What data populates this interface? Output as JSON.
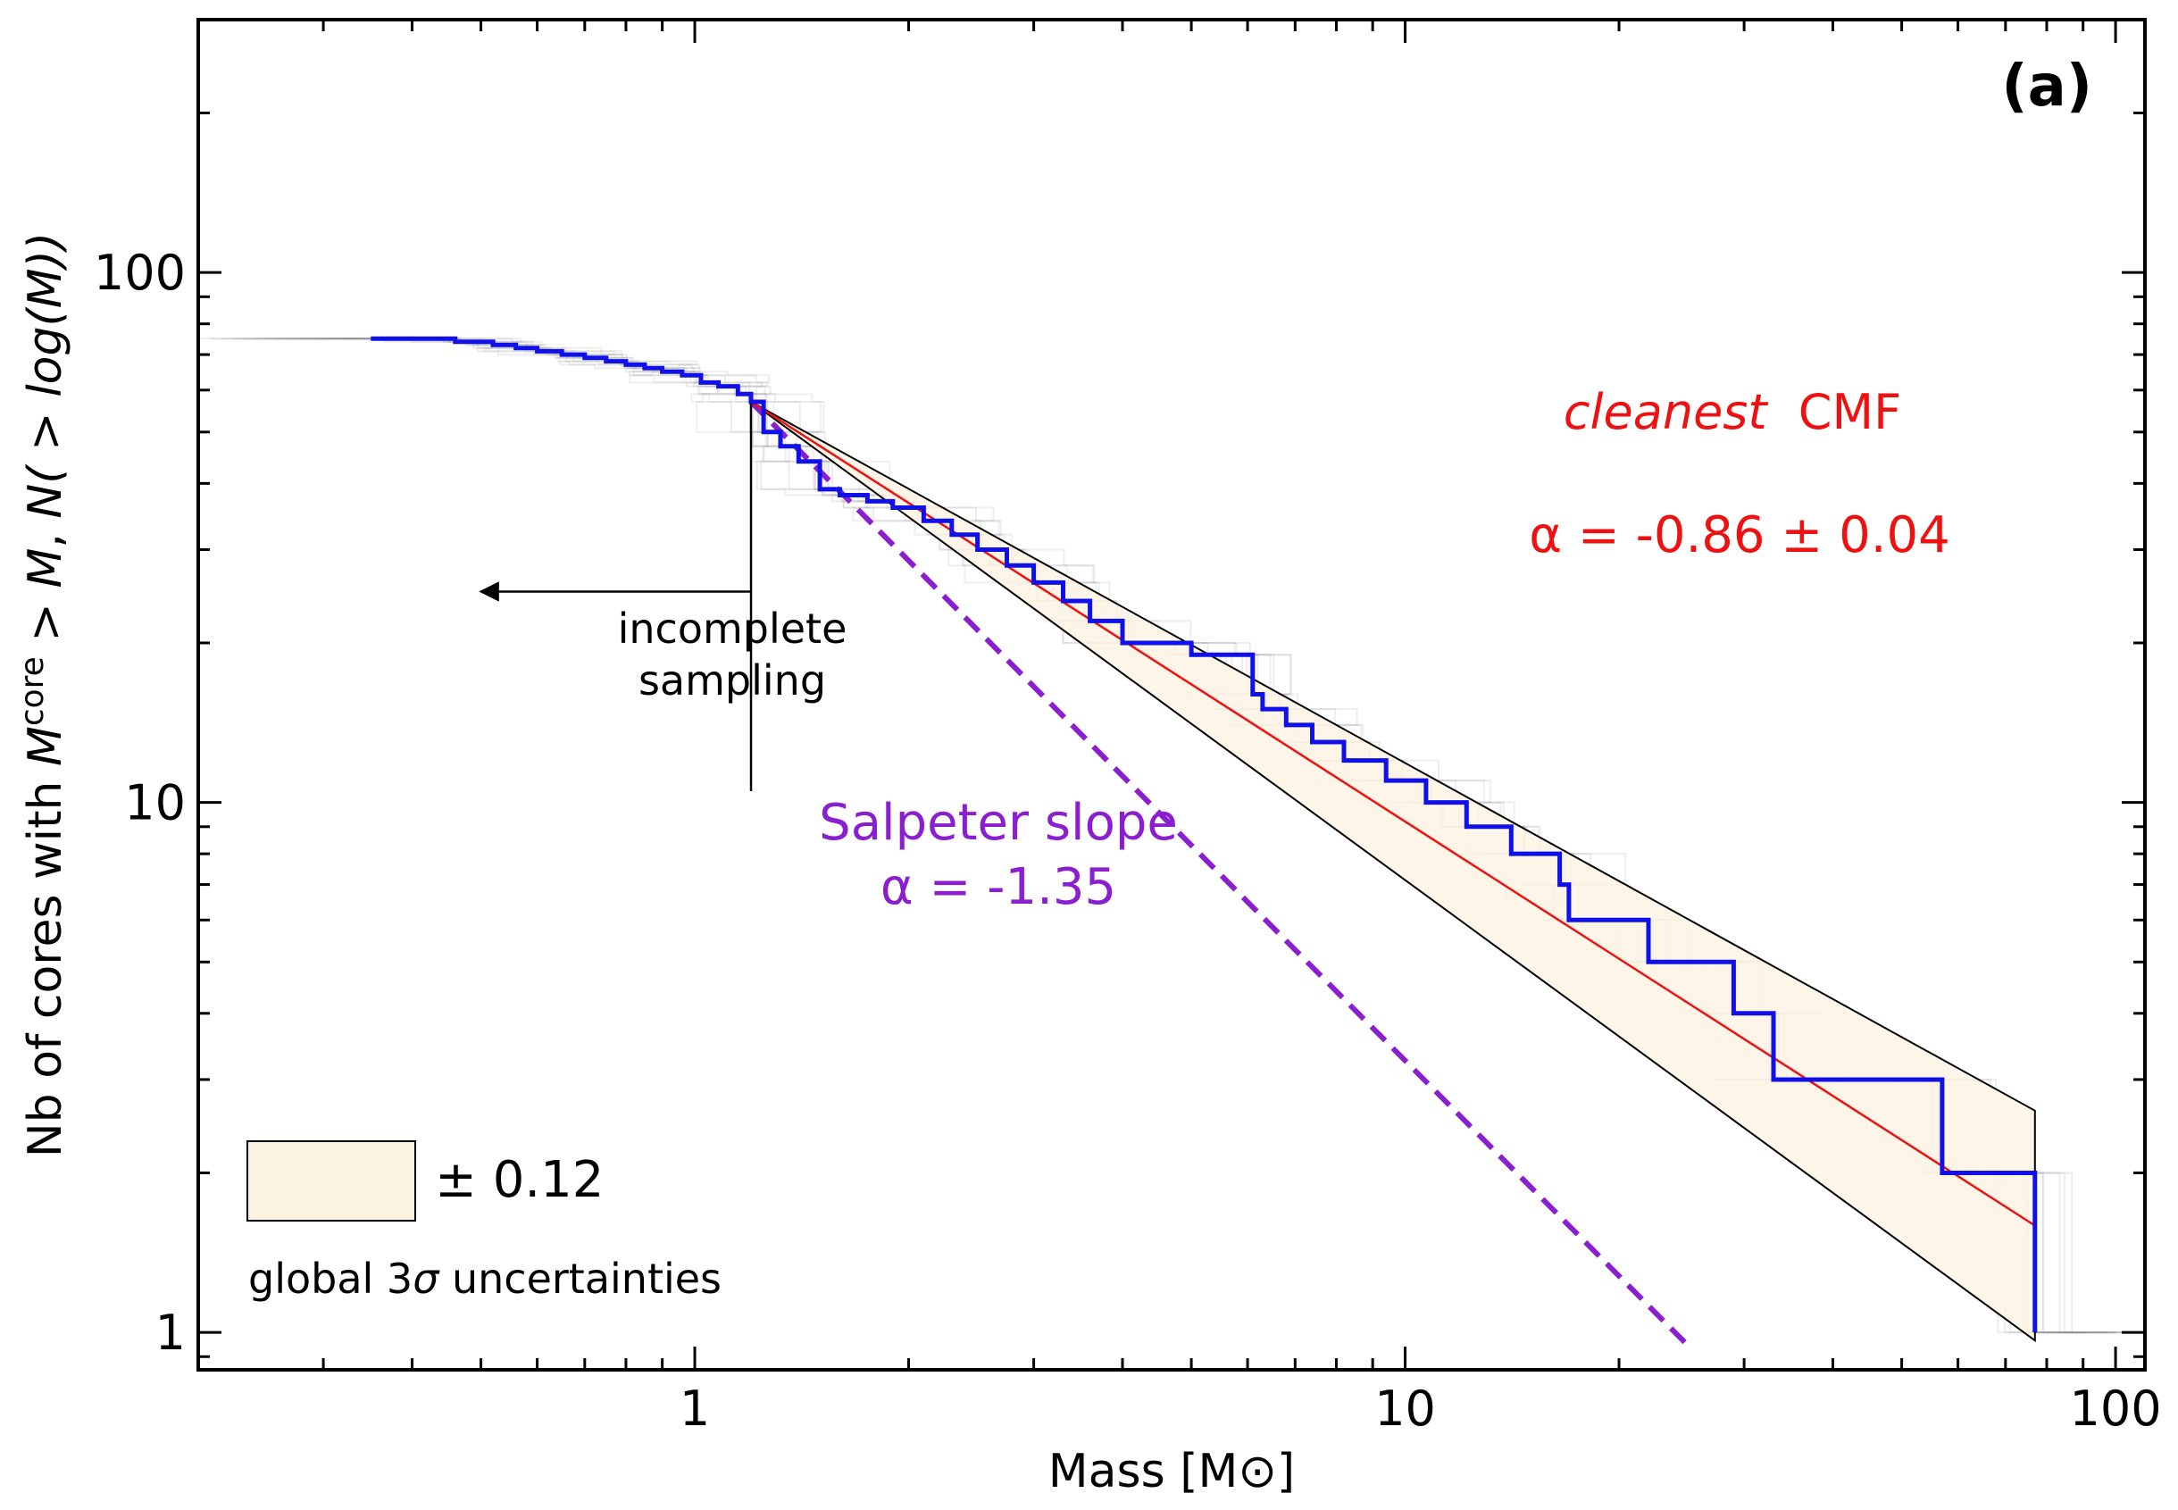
{
  "chart_data": {
    "type": "line",
    "panel_label": "(a)",
    "xlabel": "Mass [M⊙]",
    "ylabel": {
      "prefix": "Nb of cores with ",
      "m": "M",
      "sup": "core",
      "mid": " > ",
      "m2": "M",
      "comma": ", ",
      "expr": "N( > log(M))"
    },
    "xscale": "log",
    "yscale": "log",
    "xlim": [
      0.2,
      110
    ],
    "ylim": [
      0.85,
      300
    ],
    "xticks": [
      {
        "value": 1,
        "label": "1"
      },
      {
        "value": 10,
        "label": "10"
      },
      {
        "value": 100,
        "label": "100"
      }
    ],
    "yticks": [
      {
        "value": 1,
        "label": "1"
      },
      {
        "value": 10,
        "label": "10"
      },
      {
        "value": 100,
        "label": "100"
      }
    ],
    "series": [
      {
        "kind": "observed-cumulative-step",
        "color": "#1010e8",
        "x": [
          0.35,
          0.46,
          0.52,
          0.56,
          0.6,
          0.65,
          0.7,
          0.75,
          0.8,
          0.85,
          0.9,
          0.96,
          1.02,
          1.08,
          1.15,
          1.2,
          1.25,
          1.32,
          1.4,
          1.5,
          1.6,
          1.75,
          1.9,
          2.1,
          2.3,
          2.5,
          2.75,
          3.0,
          3.3,
          3.6,
          4.0,
          5.0,
          6.1,
          6.3,
          6.8,
          7.4,
          8.2,
          9.4,
          10.7,
          12.2,
          14.1,
          16.5,
          17.0,
          22.0,
          29.0,
          33.0,
          57.0,
          77.0
        ],
        "y": [
          75,
          74,
          73,
          72,
          71,
          70,
          69,
          68,
          67,
          66,
          65,
          64,
          62,
          61,
          59,
          57,
          50,
          47,
          44,
          39,
          38,
          37,
          36,
          34,
          32,
          30,
          28,
          26,
          24,
          22,
          20,
          19,
          16,
          15,
          14,
          13,
          12,
          11,
          10,
          9,
          8,
          7,
          6,
          5,
          4,
          3,
          2,
          1
        ]
      }
    ],
    "fit": {
      "label_italic": "cleanest",
      "label_rest": "CMF",
      "alpha_text": "α = -0.86 ± 0.04",
      "alpha": -0.86,
      "x_range": [
        1.2,
        77
      ],
      "y_at_start": 57,
      "color": "#ee1111"
    },
    "uncertainty_band": {
      "alpha_low": -0.74,
      "alpha_high": -0.98,
      "x_range": [
        1.2,
        77
      ],
      "fill": "#fdf3e3",
      "legend_text": "± 0.12",
      "caption_prefix": "global 3",
      "caption_sigma": "σ",
      "caption_suffix": " uncertainties"
    },
    "salpeter": {
      "label": "Salpeter slope",
      "alpha_text": "α = -1.35",
      "alpha": -1.35,
      "x_range": [
        1.2,
        25
      ],
      "y_at_start": 57,
      "color": "#8a1fd0"
    },
    "completeness": {
      "x": 1.2,
      "label_line1": "incomplete",
      "label_line2": "sampling"
    },
    "grey_realisations": {
      "count": 14,
      "color": "#8a8a8a"
    }
  }
}
